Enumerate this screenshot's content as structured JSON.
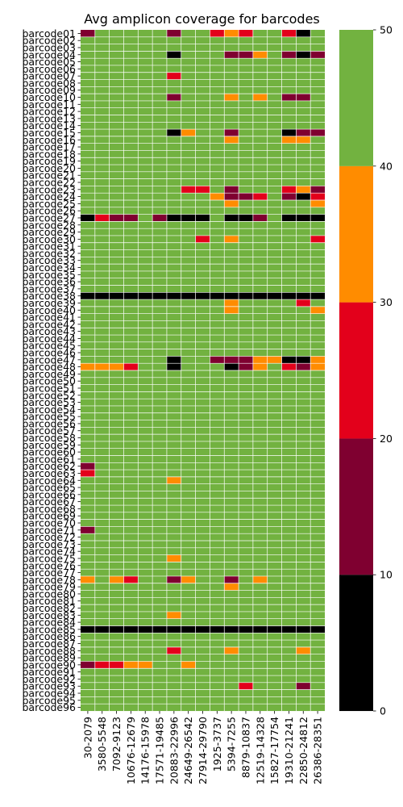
{
  "chart_data": {
    "type": "heatmap",
    "title": "Avg amplicon coverage for barcodes",
    "xlabel": "",
    "ylabel": "",
    "x_categories": [
      "30-2079",
      "3580-5548",
      "7092-9123",
      "10676-12679",
      "14176-15978",
      "17571-19485",
      "20883-22996",
      "24649-26542",
      "27914-29790",
      "1925-3737",
      "5394-7255",
      "8879-10837",
      "12519-14328",
      "15827-17754",
      "19310-21241",
      "22850-24812",
      "26386-28351"
    ],
    "y_categories": [
      "barcode01",
      "barcode02",
      "barcode03",
      "barcode04",
      "barcode05",
      "barcode06",
      "barcode07",
      "barcode08",
      "barcode09",
      "barcode10",
      "barcode11",
      "barcode12",
      "barcode13",
      "barcode14",
      "barcode15",
      "barcode16",
      "barcode17",
      "barcode18",
      "barcode19",
      "barcode20",
      "barcode21",
      "barcode22",
      "barcode23",
      "barcode24",
      "barcode25",
      "barcode26",
      "barcode27",
      "barcode28",
      "barcode29",
      "barcode30",
      "barcode31",
      "barcode32",
      "barcode33",
      "barcode34",
      "barcode35",
      "barcode36",
      "barcode37",
      "barcode38",
      "barcode39",
      "barcode40",
      "barcode41",
      "barcode42",
      "barcode43",
      "barcode44",
      "barcode45",
      "barcode46",
      "barcode47",
      "barcode48",
      "barcode49",
      "barcode50",
      "barcode51",
      "barcode52",
      "barcode53",
      "barcode54",
      "barcode55",
      "barcode56",
      "barcode57",
      "barcode58",
      "barcode59",
      "barcode60",
      "barcode61",
      "barcode62",
      "barcode63",
      "barcode64",
      "barcode65",
      "barcode66",
      "barcode67",
      "barcode68",
      "barcode69",
      "barcode70",
      "barcode71",
      "barcode72",
      "barcode73",
      "barcode74",
      "barcode75",
      "barcode76",
      "barcode77",
      "barcode78",
      "barcode79",
      "barcode80",
      "barcode81",
      "barcode82",
      "barcode83",
      "barcode84",
      "barcode85",
      "barcode86",
      "barcode87",
      "barcode88",
      "barcode89",
      "barcode90",
      "barcode91",
      "barcode92",
      "barcode93",
      "barcode94",
      "barcode95",
      "barcode96"
    ],
    "value_range": [
      0,
      50
    ],
    "colorbar": {
      "boundaries": [
        0,
        10,
        20,
        30,
        40,
        50
      ],
      "colors": [
        "#000000",
        "#7f0030",
        "#e3001b",
        "#ff8c00",
        "#72b240"
      ],
      "ticks": [
        "0",
        "10",
        "20",
        "30",
        "40",
        "50"
      ]
    },
    "grid": true,
    "cells": [
      {
        "row": 0,
        "col": 0,
        "value": 15
      },
      {
        "row": 0,
        "col": 6,
        "value": 15
      },
      {
        "row": 0,
        "col": 9,
        "value": 25
      },
      {
        "row": 0,
        "col": 10,
        "value": 35
      },
      {
        "row": 0,
        "col": 11,
        "value": 25
      },
      {
        "row": 0,
        "col": 14,
        "value": 25
      },
      {
        "row": 0,
        "col": 15,
        "value": 5
      },
      {
        "row": 3,
        "col": 6,
        "value": 5
      },
      {
        "row": 3,
        "col": 10,
        "value": 15
      },
      {
        "row": 3,
        "col": 11,
        "value": 15
      },
      {
        "row": 3,
        "col": 12,
        "value": 35
      },
      {
        "row": 3,
        "col": 14,
        "value": 15
      },
      {
        "row": 3,
        "col": 15,
        "value": 5
      },
      {
        "row": 3,
        "col": 16,
        "value": 15
      },
      {
        "row": 6,
        "col": 6,
        "value": 25
      },
      {
        "row": 9,
        "col": 6,
        "value": 15
      },
      {
        "row": 9,
        "col": 10,
        "value": 35
      },
      {
        "row": 9,
        "col": 12,
        "value": 35
      },
      {
        "row": 9,
        "col": 14,
        "value": 15
      },
      {
        "row": 9,
        "col": 15,
        "value": 15
      },
      {
        "row": 14,
        "col": 6,
        "value": 5
      },
      {
        "row": 14,
        "col": 7,
        "value": 35
      },
      {
        "row": 14,
        "col": 10,
        "value": 15
      },
      {
        "row": 14,
        "col": 14,
        "value": 5
      },
      {
        "row": 14,
        "col": 15,
        "value": 15
      },
      {
        "row": 14,
        "col": 16,
        "value": 15
      },
      {
        "row": 15,
        "col": 10,
        "value": 35
      },
      {
        "row": 15,
        "col": 14,
        "value": 35
      },
      {
        "row": 15,
        "col": 15,
        "value": 35
      },
      {
        "row": 22,
        "col": 7,
        "value": 25
      },
      {
        "row": 22,
        "col": 8,
        "value": 25
      },
      {
        "row": 22,
        "col": 10,
        "value": 15
      },
      {
        "row": 22,
        "col": 14,
        "value": 25
      },
      {
        "row": 22,
        "col": 15,
        "value": 35
      },
      {
        "row": 22,
        "col": 16,
        "value": 15
      },
      {
        "row": 23,
        "col": 9,
        "value": 35
      },
      {
        "row": 23,
        "col": 10,
        "value": 15
      },
      {
        "row": 23,
        "col": 11,
        "value": 15
      },
      {
        "row": 23,
        "col": 12,
        "value": 25
      },
      {
        "row": 23,
        "col": 14,
        "value": 15
      },
      {
        "row": 23,
        "col": 15,
        "value": 5
      },
      {
        "row": 23,
        "col": 16,
        "value": 25
      },
      {
        "row": 24,
        "col": 10,
        "value": 35
      },
      {
        "row": 24,
        "col": 16,
        "value": 35
      },
      {
        "row": 26,
        "col": 0,
        "value": 5
      },
      {
        "row": 26,
        "col": 1,
        "value": 25
      },
      {
        "row": 26,
        "col": 2,
        "value": 15
      },
      {
        "row": 26,
        "col": 3,
        "value": 15
      },
      {
        "row": 26,
        "col": 5,
        "value": 15
      },
      {
        "row": 26,
        "col": 6,
        "value": 5
      },
      {
        "row": 26,
        "col": 7,
        "value": 5
      },
      {
        "row": 26,
        "col": 8,
        "value": 5
      },
      {
        "row": 26,
        "col": 10,
        "value": 5
      },
      {
        "row": 26,
        "col": 11,
        "value": 5
      },
      {
        "row": 26,
        "col": 12,
        "value": 15
      },
      {
        "row": 26,
        "col": 14,
        "value": 5
      },
      {
        "row": 26,
        "col": 15,
        "value": 5
      },
      {
        "row": 26,
        "col": 16,
        "value": 5
      },
      {
        "row": 29,
        "col": 8,
        "value": 25
      },
      {
        "row": 29,
        "col": 10,
        "value": 35
      },
      {
        "row": 29,
        "col": 16,
        "value": 25
      },
      {
        "row": 37,
        "col": 0,
        "value": 5
      },
      {
        "row": 37,
        "col": 1,
        "value": 5
      },
      {
        "row": 37,
        "col": 2,
        "value": 5
      },
      {
        "row": 37,
        "col": 3,
        "value": 5
      },
      {
        "row": 37,
        "col": 4,
        "value": 5
      },
      {
        "row": 37,
        "col": 5,
        "value": 5
      },
      {
        "row": 37,
        "col": 6,
        "value": 5
      },
      {
        "row": 37,
        "col": 7,
        "value": 5
      },
      {
        "row": 37,
        "col": 8,
        "value": 5
      },
      {
        "row": 37,
        "col": 9,
        "value": 5
      },
      {
        "row": 37,
        "col": 10,
        "value": 5
      },
      {
        "row": 37,
        "col": 11,
        "value": 5
      },
      {
        "row": 37,
        "col": 12,
        "value": 5
      },
      {
        "row": 37,
        "col": 13,
        "value": 5
      },
      {
        "row": 37,
        "col": 14,
        "value": 5
      },
      {
        "row": 37,
        "col": 15,
        "value": 5
      },
      {
        "row": 37,
        "col": 16,
        "value": 5
      },
      {
        "row": 38,
        "col": 10,
        "value": 35
      },
      {
        "row": 38,
        "col": 15,
        "value": 25
      },
      {
        "row": 39,
        "col": 10,
        "value": 35
      },
      {
        "row": 39,
        "col": 16,
        "value": 35
      },
      {
        "row": 46,
        "col": 6,
        "value": 5
      },
      {
        "row": 46,
        "col": 9,
        "value": 15
      },
      {
        "row": 46,
        "col": 10,
        "value": 15
      },
      {
        "row": 46,
        "col": 11,
        "value": 15
      },
      {
        "row": 46,
        "col": 12,
        "value": 35
      },
      {
        "row": 46,
        "col": 13,
        "value": 35
      },
      {
        "row": 46,
        "col": 14,
        "value": 5
      },
      {
        "row": 46,
        "col": 15,
        "value": 5
      },
      {
        "row": 46,
        "col": 16,
        "value": 35
      },
      {
        "row": 47,
        "col": 0,
        "value": 35
      },
      {
        "row": 47,
        "col": 1,
        "value": 35
      },
      {
        "row": 47,
        "col": 2,
        "value": 35
      },
      {
        "row": 47,
        "col": 3,
        "value": 25
      },
      {
        "row": 47,
        "col": 6,
        "value": 5
      },
      {
        "row": 47,
        "col": 10,
        "value": 5
      },
      {
        "row": 47,
        "col": 11,
        "value": 15
      },
      {
        "row": 47,
        "col": 12,
        "value": 35
      },
      {
        "row": 47,
        "col": 14,
        "value": 25
      },
      {
        "row": 47,
        "col": 15,
        "value": 15
      },
      {
        "row": 47,
        "col": 16,
        "value": 35
      },
      {
        "row": 61,
        "col": 0,
        "value": 15
      },
      {
        "row": 62,
        "col": 0,
        "value": 25
      },
      {
        "row": 63,
        "col": 6,
        "value": 35
      },
      {
        "row": 70,
        "col": 0,
        "value": 15
      },
      {
        "row": 74,
        "col": 6,
        "value": 35
      },
      {
        "row": 77,
        "col": 0,
        "value": 35
      },
      {
        "row": 77,
        "col": 2,
        "value": 35
      },
      {
        "row": 77,
        "col": 3,
        "value": 25
      },
      {
        "row": 77,
        "col": 6,
        "value": 15
      },
      {
        "row": 77,
        "col": 7,
        "value": 35
      },
      {
        "row": 77,
        "col": 10,
        "value": 15
      },
      {
        "row": 77,
        "col": 12,
        "value": 35
      },
      {
        "row": 78,
        "col": 10,
        "value": 35
      },
      {
        "row": 82,
        "col": 6,
        "value": 35
      },
      {
        "row": 84,
        "col": 0,
        "value": 5
      },
      {
        "row": 84,
        "col": 1,
        "value": 5
      },
      {
        "row": 84,
        "col": 2,
        "value": 5
      },
      {
        "row": 84,
        "col": 3,
        "value": 5
      },
      {
        "row": 84,
        "col": 4,
        "value": 5
      },
      {
        "row": 84,
        "col": 5,
        "value": 5
      },
      {
        "row": 84,
        "col": 6,
        "value": 5
      },
      {
        "row": 84,
        "col": 7,
        "value": 5
      },
      {
        "row": 84,
        "col": 8,
        "value": 5
      },
      {
        "row": 84,
        "col": 9,
        "value": 5
      },
      {
        "row": 84,
        "col": 10,
        "value": 5
      },
      {
        "row": 84,
        "col": 11,
        "value": 5
      },
      {
        "row": 84,
        "col": 12,
        "value": 5
      },
      {
        "row": 84,
        "col": 13,
        "value": 5
      },
      {
        "row": 84,
        "col": 14,
        "value": 5
      },
      {
        "row": 84,
        "col": 15,
        "value": 5
      },
      {
        "row": 84,
        "col": 16,
        "value": 5
      },
      {
        "row": 87,
        "col": 6,
        "value": 25
      },
      {
        "row": 87,
        "col": 10,
        "value": 35
      },
      {
        "row": 87,
        "col": 15,
        "value": 35
      },
      {
        "row": 89,
        "col": 0,
        "value": 15
      },
      {
        "row": 89,
        "col": 1,
        "value": 25
      },
      {
        "row": 89,
        "col": 2,
        "value": 25
      },
      {
        "row": 89,
        "col": 3,
        "value": 35
      },
      {
        "row": 89,
        "col": 4,
        "value": 35
      },
      {
        "row": 89,
        "col": 7,
        "value": 35
      },
      {
        "row": 92,
        "col": 11,
        "value": 25
      },
      {
        "row": 92,
        "col": 15,
        "value": 15
      }
    ],
    "default_value": 45
  }
}
